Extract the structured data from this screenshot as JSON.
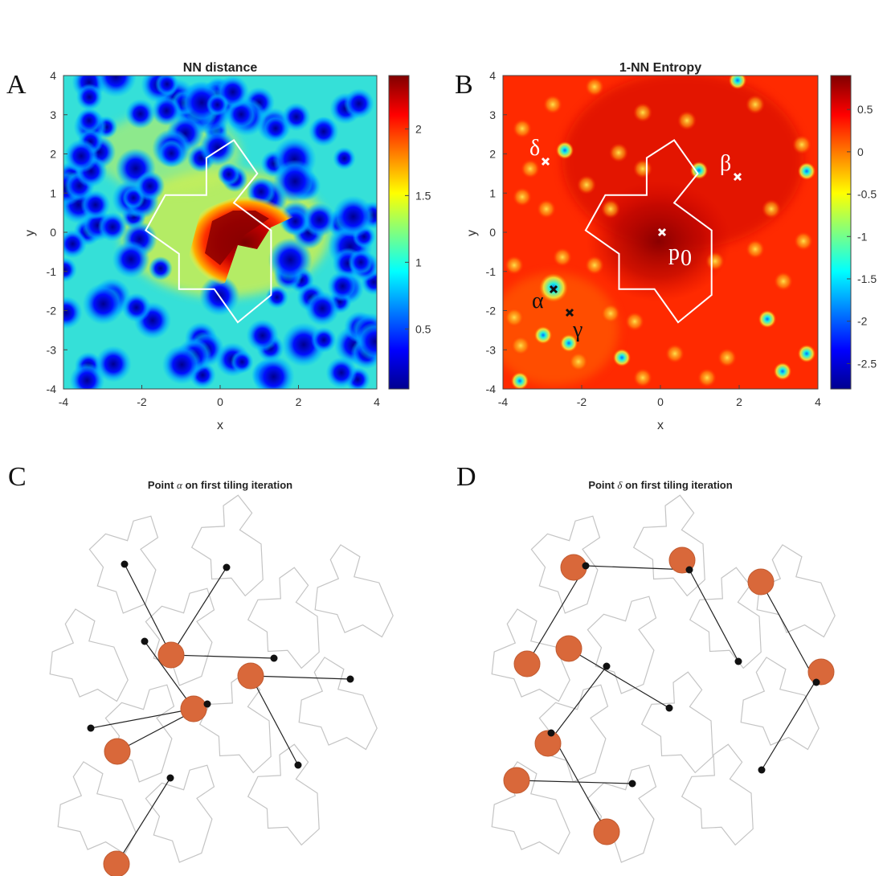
{
  "panels": {
    "A": {
      "letter": "A",
      "title": "NN distance",
      "xlabel": "x",
      "ylabel": "y"
    },
    "B": {
      "letter": "B",
      "title": "1-NN Entropy",
      "xlabel": "x",
      "ylabel": "y",
      "annotations": {
        "delta": "δ",
        "beta": "β",
        "alpha": "α",
        "gamma": "γ",
        "p0_base": "p",
        "p0_sub": "0"
      }
    },
    "C": {
      "letter": "C",
      "title_prefix": "Point ",
      "title_symbol": "α",
      "title_suffix": " on first tiling iteration"
    },
    "D": {
      "letter": "D",
      "title_prefix": "Point ",
      "title_symbol": "δ",
      "title_suffix": " on first tiling iteration"
    }
  },
  "chart_data": [
    {
      "type": "heatmap",
      "title": "NN distance",
      "xlabel": "x",
      "ylabel": "y",
      "xlim": [
        -4,
        4
      ],
      "ylim": [
        -4,
        4
      ],
      "xticks": [
        -4,
        -2,
        0,
        2,
        4
      ],
      "yticks": [
        4,
        3,
        2,
        1,
        0,
        -1,
        -2,
        -3,
        -4
      ],
      "colorbar": {
        "ticks": [
          2,
          1.5,
          1,
          0.5
        ],
        "range": [
          0.05,
          2.4
        ],
        "colormap": "jet"
      },
      "overlay_polygon": [
        [
          -1.9,
          0.05
        ],
        [
          -1.4,
          0.95
        ],
        [
          -0.35,
          0.95
        ],
        [
          -0.35,
          1.9
        ],
        [
          0.35,
          2.35
        ],
        [
          0.95,
          1.5
        ],
        [
          0.35,
          0.75
        ],
        [
          1.3,
          0.05
        ],
        [
          1.3,
          -1.6
        ],
        [
          0.45,
          -2.3
        ],
        [
          -0.15,
          -1.45
        ],
        [
          -1.05,
          -1.45
        ],
        [
          -1.05,
          -0.55
        ]
      ]
    },
    {
      "type": "heatmap",
      "title": "1-NN Entropy",
      "xlabel": "x",
      "ylabel": "y",
      "xlim": [
        -4,
        4
      ],
      "ylim": [
        -4,
        4
      ],
      "xticks": [
        -4,
        -2,
        0,
        2,
        4
      ],
      "yticks": [
        4,
        3,
        2,
        1,
        0,
        -1,
        -2,
        -3,
        -4
      ],
      "colorbar": {
        "ticks": [
          0.5,
          0,
          -0.5,
          -1,
          -1.5,
          -2,
          -2.5
        ],
        "range": [
          -2.8,
          0.9
        ],
        "colormap": "jet"
      },
      "overlay_polygon": [
        [
          -1.9,
          0.05
        ],
        [
          -1.4,
          0.95
        ],
        [
          -0.35,
          0.95
        ],
        [
          -0.35,
          1.9
        ],
        [
          0.35,
          2.35
        ],
        [
          0.95,
          1.5
        ],
        [
          0.35,
          0.75
        ],
        [
          1.3,
          0.05
        ],
        [
          1.3,
          -1.6
        ],
        [
          0.45,
          -2.3
        ],
        [
          -0.15,
          -1.45
        ],
        [
          -1.05,
          -1.45
        ],
        [
          -1.05,
          -0.55
        ]
      ],
      "marked_points": [
        {
          "label": "δ",
          "x": -2.95,
          "y": 1.8
        },
        {
          "label": "β",
          "x": 1.95,
          "y": 1.4
        },
        {
          "label": "α",
          "x": -2.75,
          "y": -1.45
        },
        {
          "label": "γ",
          "x": -2.35,
          "y": -2.05
        },
        {
          "label": "p0",
          "x": 0.0,
          "y": 0.0
        }
      ]
    }
  ],
  "colors": {
    "accent_dots": "#d9683a",
    "polygon_line": "#bfbfbf",
    "marker_dark": "#111111",
    "marker_light": "#ffffff"
  }
}
